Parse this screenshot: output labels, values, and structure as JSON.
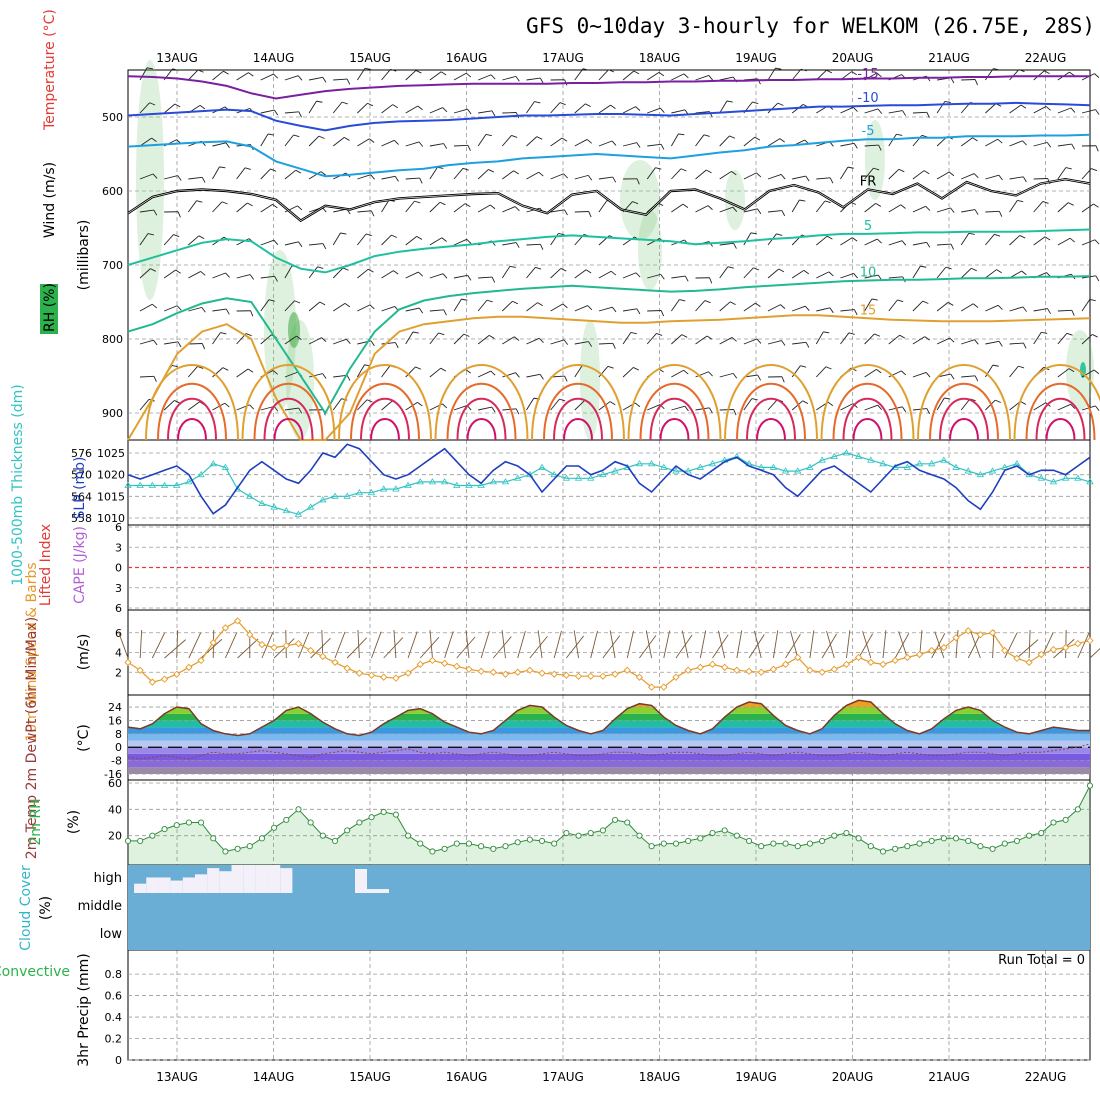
{
  "title": "GFS 0~10day 3-hourly for WELKOM (26.75E, 28S)",
  "dates": [
    "13AUG",
    "14AUG",
    "15AUG",
    "16AUG",
    "17AUG",
    "18AUG",
    "19AUG",
    "20AUG",
    "21AUG",
    "22AUG"
  ],
  "colors": {
    "grid": "#9a9a9a",
    "temp_cold": "#7b1fa2",
    "temp_mid": "#1e88e5",
    "temp_warm": "#e53935",
    "freezing": "#000000",
    "rh": "#7cc47c",
    "slp": "#1f3fbf",
    "thickness": "#33c3c3",
    "lifted": "#e53935",
    "cape": "#b25fd6",
    "wind": "#e69a28",
    "rh2m": "#4caf50",
    "cloud_bg": "#6aaed6",
    "cloud_fill": "#f4f0fa"
  },
  "chart_data": [
    {
      "panel": "upper-air",
      "type": "contour",
      "y_axis_title": "(millibars)",
      "legend_labels": {
        "rh": "RH (%)",
        "temperature": "Temperature (°C)",
        "wind": "Wind (m/s)"
      },
      "yticks": [
        500,
        600,
        700,
        800,
        900
      ],
      "ylim": [
        950,
        450
      ],
      "isotherms": [
        {
          "label": "-15",
          "color": "#7b1fa2",
          "values": [
            445,
            446,
            448,
            452,
            458,
            468,
            475,
            470,
            465,
            462,
            460,
            458,
            457,
            456,
            455,
            455,
            455,
            455,
            454,
            454,
            453,
            453,
            452,
            452,
            451,
            451,
            450,
            450,
            449,
            449,
            448,
            448,
            447,
            447,
            446,
            446,
            445,
            445,
            445,
            445
          ]
        },
        {
          "label": "-10",
          "color": "#2a4bd7",
          "values": [
            498,
            496,
            494,
            492,
            490,
            492,
            505,
            512,
            518,
            512,
            508,
            506,
            505,
            504,
            502,
            500,
            498,
            498,
            497,
            496,
            496,
            497,
            498,
            496,
            494,
            492,
            490,
            488,
            486,
            486,
            485,
            484,
            484,
            483,
            482,
            482,
            481,
            482,
            483,
            484
          ]
        },
        {
          "label": "-5",
          "color": "#1ea0e0",
          "values": [
            540,
            538,
            536,
            534,
            533,
            540,
            560,
            570,
            580,
            578,
            575,
            572,
            570,
            565,
            562,
            560,
            556,
            554,
            552,
            550,
            552,
            554,
            556,
            552,
            548,
            545,
            540,
            538,
            535,
            532,
            530,
            530,
            528,
            528,
            526,
            526,
            526,
            525,
            525,
            524
          ]
        },
        {
          "label": "FR",
          "color": "#000000",
          "values": [
            630,
            608,
            600,
            598,
            600,
            604,
            612,
            640,
            620,
            625,
            615,
            610,
            608,
            606,
            604,
            603,
            620,
            630,
            605,
            600,
            625,
            632,
            600,
            598,
            610,
            625,
            600,
            592,
            602,
            622,
            598,
            604,
            590,
            610,
            588,
            600,
            606,
            590,
            584,
            590
          ]
        },
        {
          "label": "5",
          "color": "#1ec0a0",
          "values": [
            700,
            690,
            680,
            670,
            665,
            668,
            690,
            705,
            710,
            700,
            688,
            682,
            678,
            675,
            672,
            668,
            665,
            662,
            660,
            662,
            664,
            666,
            668,
            672,
            670,
            668,
            665,
            663,
            660,
            658,
            658,
            657,
            656,
            656,
            655,
            655,
            655,
            654,
            653,
            652
          ]
        },
        {
          "label": "10",
          "color": "#22b890",
          "values": [
            790,
            780,
            765,
            752,
            745,
            750,
            800,
            850,
            900,
            840,
            790,
            760,
            748,
            742,
            738,
            735,
            732,
            730,
            728,
            730,
            732,
            734,
            736,
            735,
            733,
            730,
            728,
            726,
            724,
            722,
            721,
            720,
            720,
            719,
            718,
            718,
            717,
            716,
            716,
            715
          ]
        },
        {
          "label": "15",
          "color": "#e0a030",
          "values": [
            950,
            880,
            820,
            790,
            780,
            800,
            880,
            950,
            950,
            900,
            820,
            790,
            780,
            776,
            772,
            770,
            770,
            772,
            774,
            776,
            778,
            778,
            776,
            775,
            774,
            772,
            770,
            768,
            768,
            770,
            772,
            774,
            775,
            776,
            776,
            776,
            775,
            774,
            773,
            772
          ]
        }
      ]
    },
    {
      "panel": "slp-thickness",
      "type": "line",
      "y_axis_title_left": "1000-500mb Thickness (dm)",
      "y_axis_title_right": "SLP (mb)",
      "yticks_left": [
        558,
        564,
        570,
        576
      ],
      "yticks_right": [
        1010,
        1015,
        1020,
        1025
      ],
      "series": [
        {
          "name": "SLP (mb)",
          "values": [
            1020,
            1019,
            1020,
            1021,
            1022,
            1020,
            1015,
            1011,
            1013,
            1017,
            1021,
            1023,
            1021,
            1019,
            1018,
            1021,
            1025,
            1024,
            1027,
            1026,
            1023,
            1020,
            1019,
            1020,
            1022,
            1024,
            1026,
            1023,
            1020,
            1018,
            1021,
            1023,
            1022,
            1020,
            1016,
            1019,
            1022,
            1022,
            1020,
            1021,
            1023,
            1022,
            1018,
            1016,
            1019,
            1022,
            1020,
            1019,
            1021,
            1023,
            1024,
            1022,
            1021,
            1020,
            1017,
            1015,
            1018,
            1021,
            1022,
            1020,
            1018,
            1016,
            1019,
            1022,
            1023,
            1021,
            1020,
            1019,
            1017,
            1014,
            1012,
            1016,
            1021,
            1022,
            1020,
            1021,
            1021,
            1020,
            1022,
            1024
          ]
        },
        {
          "name": "1000-500mb Thickness (dm)",
          "values": [
            567,
            567,
            567,
            567,
            567,
            568,
            570,
            573,
            572,
            566,
            564,
            562,
            561,
            560,
            559,
            561,
            563,
            564,
            564,
            565,
            565,
            566,
            566,
            567,
            568,
            568,
            568,
            567,
            567,
            567,
            568,
            568,
            569,
            570,
            572,
            570,
            569,
            569,
            569,
            570,
            571,
            572,
            573,
            573,
            572,
            571,
            571,
            572,
            573,
            574,
            575,
            573,
            572,
            572,
            571,
            571,
            572,
            574,
            575,
            576,
            575,
            574,
            573,
            572,
            572,
            573,
            573,
            574,
            572,
            571,
            570,
            571,
            572,
            573,
            570,
            569,
            568,
            569,
            569,
            568
          ]
        }
      ]
    },
    {
      "panel": "stability",
      "type": "line",
      "y_axis_title_left": "Lifted Index",
      "y_axis_title_right": "CAPE (J/kg)",
      "yticks": [
        -6,
        -3,
        0,
        3,
        6
      ],
      "ylim": [
        -6,
        6
      ]
    },
    {
      "panel": "wind-10m",
      "type": "line",
      "y_axis_title_left": "10m Wind Speed & Barbs",
      "y_axis_unit": "(m/s)",
      "yticks": [
        2,
        4,
        6
      ],
      "ylim": [
        0,
        8
      ],
      "series": [
        {
          "name": "10m Wind Speed",
          "values": [
            3.0,
            2.2,
            1.0,
            1.3,
            1.8,
            2.5,
            3.2,
            5.0,
            6.5,
            7.2,
            5.8,
            4.8,
            4.5,
            4.7,
            4.9,
            4.2,
            3.6,
            3.0,
            2.4,
            1.9,
            1.7,
            1.5,
            1.4,
            1.9,
            2.8,
            3.2,
            2.9,
            2.6,
            2.3,
            2.1,
            2.0,
            1.8,
            2.0,
            2.2,
            1.9,
            1.8,
            1.7,
            1.6,
            1.6,
            1.6,
            1.8,
            2.2,
            1.5,
            0.5,
            0.5,
            1.5,
            2.2,
            2.5,
            2.8,
            2.5,
            2.2,
            2.1,
            2.0,
            2.3,
            2.8,
            3.5,
            2.2,
            2.0,
            2.3,
            2.8,
            3.5,
            3.0,
            2.8,
            3.2,
            3.5,
            3.8,
            4.2,
            4.5,
            5.5,
            6.2,
            5.8,
            6.0,
            4.2,
            3.4,
            3.0,
            3.8,
            4.3,
            4.5,
            4.9,
            5.2
          ]
        }
      ]
    },
    {
      "panel": "temperature-2m",
      "type": "area",
      "y_axis_title_left": "2m Temp 2m DewPt (6hr Min/Max)",
      "y_axis_unit": "(°C)",
      "yticks": [
        -16,
        -8,
        0,
        8,
        16,
        24
      ],
      "ylim": [
        -16,
        30
      ],
      "series": [
        {
          "name": "2m Temp",
          "values": [
            12,
            11,
            14,
            20,
            24,
            23,
            14,
            10,
            8,
            7,
            8,
            12,
            16,
            22,
            24,
            20,
            15,
            11,
            8,
            7,
            9,
            14,
            18,
            22,
            23,
            20,
            15,
            12,
            9,
            8,
            10,
            16,
            22,
            25,
            24,
            18,
            13,
            10,
            8,
            10,
            17,
            23,
            26,
            25,
            18,
            13,
            10,
            8,
            11,
            18,
            24,
            27,
            26,
            19,
            13,
            10,
            8,
            11,
            19,
            25,
            28,
            27,
            20,
            14,
            10,
            8,
            11,
            17,
            22,
            24,
            22,
            16,
            12,
            9,
            8,
            10,
            12,
            11,
            10,
            10
          ]
        },
        {
          "name": "2m DewPt",
          "values": [
            -6,
            -7,
            -6,
            -5,
            -6,
            -7,
            -5,
            -3,
            -4,
            -4,
            -3,
            -2,
            -3,
            -4,
            -5,
            -6,
            -4,
            -3,
            -2,
            -3,
            -4,
            -3,
            -2,
            -1,
            -3,
            -4,
            -3,
            -4,
            -5,
            -4,
            -3,
            -4,
            -5,
            -5,
            -4,
            -3,
            -4,
            -5,
            -5,
            -4,
            -3,
            -3,
            -4,
            -5,
            -4,
            -3,
            -3,
            -4,
            -5,
            -5,
            -4,
            -3,
            -4,
            -5,
            -4,
            -3,
            -4,
            -5,
            -5,
            -4,
            -3,
            -4,
            -5,
            -4,
            -3,
            -4,
            -5,
            -5,
            -4,
            -3,
            -3,
            -4,
            -5,
            -4,
            -3,
            -3,
            -2,
            -1,
            0,
            2
          ]
        }
      ]
    },
    {
      "panel": "rh-2m",
      "type": "area",
      "y_axis_title_left": "2m RH",
      "y_axis_unit": "(%)",
      "yticks": [
        20,
        40,
        60
      ],
      "ylim": [
        0,
        60
      ],
      "series": [
        {
          "name": "2m RH",
          "values": [
            16,
            16,
            20,
            25,
            28,
            30,
            30,
            18,
            8,
            10,
            12,
            18,
            26,
            32,
            40,
            30,
            20,
            16,
            24,
            30,
            34,
            38,
            36,
            20,
            14,
            8,
            10,
            14,
            14,
            12,
            10,
            12,
            15,
            17,
            16,
            14,
            22,
            20,
            22,
            24,
            32,
            30,
            20,
            12,
            14,
            14,
            16,
            18,
            22,
            24,
            20,
            16,
            12,
            14,
            14,
            12,
            14,
            16,
            20,
            22,
            18,
            12,
            8,
            10,
            12,
            14,
            16,
            18,
            18,
            16,
            12,
            10,
            14,
            16,
            20,
            22,
            30,
            32,
            40,
            58
          ]
        }
      ]
    },
    {
      "panel": "cloud-cover",
      "type": "area",
      "y_axis_title_left": "Cloud Cover",
      "y_axis_unit": "(%)",
      "level_labels": [
        "high",
        "middle",
        "low"
      ],
      "series": [
        {
          "name": "high",
          "values": [
            0,
            15,
            25,
            25,
            20,
            25,
            30,
            40,
            35,
            45,
            45,
            45,
            45,
            40,
            0,
            0,
            0,
            0,
            0,
            0,
            0,
            0,
            0,
            0,
            0,
            0,
            0,
            0,
            0,
            0,
            0,
            0,
            0,
            0,
            0,
            0,
            0,
            0,
            0,
            0,
            0,
            0,
            0,
            0,
            0,
            0,
            0,
            0,
            0,
            0,
            0,
            0,
            0,
            0,
            0,
            0,
            0,
            0,
            0,
            0,
            0,
            0,
            0,
            0,
            0,
            0,
            0,
            0,
            0,
            0,
            0,
            0,
            0,
            0,
            0,
            0,
            0,
            0,
            0,
            0
          ]
        }
      ]
    },
    {
      "panel": "precipitation",
      "type": "bar",
      "y_axis_title_left": "Total / Rain Convective",
      "y_axis_title_right": "3hr Precip (mm)",
      "yticks": [
        0,
        0.2,
        0.4,
        0.6,
        0.8
      ],
      "ylim": [
        0,
        0.95
      ],
      "annotation": "Run Total = 0",
      "values": []
    }
  ]
}
